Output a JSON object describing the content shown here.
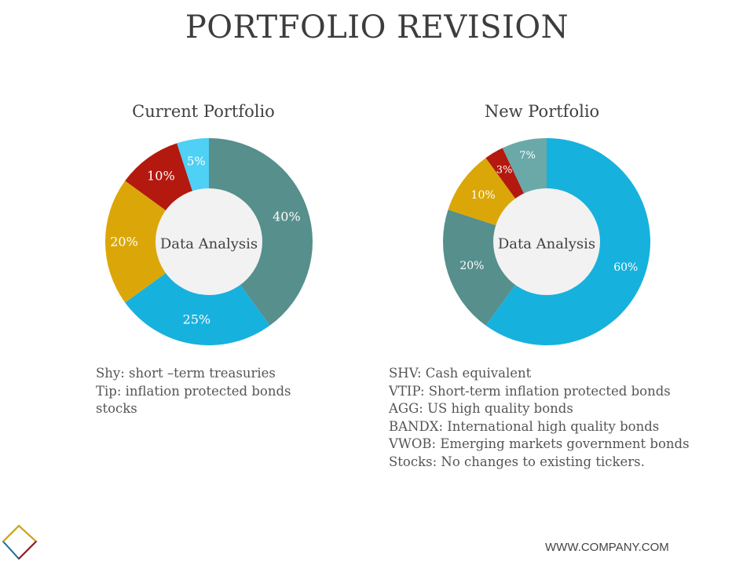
{
  "page": {
    "title": "PORTFOLIO REVISION",
    "footer_url": "WWW.COMPANY.COM"
  },
  "chart_data": [
    {
      "type": "pie",
      "donut": true,
      "title": "Current Portfolio",
      "center_label": "Data Analysis",
      "slices": [
        {
          "value": 40,
          "label": "40%",
          "color": "#568f8c"
        },
        {
          "value": 25,
          "label": "25%",
          "color": "#17b1de"
        },
        {
          "value": 20,
          "label": "20%",
          "color": "#dba708"
        },
        {
          "value": 10,
          "label": "10%",
          "color": "#b3190f"
        },
        {
          "value": 5,
          "label": "5%",
          "color": "#4fd0f5"
        }
      ]
    },
    {
      "type": "pie",
      "donut": true,
      "title": "New Portfolio",
      "center_label": "Data Analysis",
      "slices": [
        {
          "value": 60,
          "label": "60%",
          "color": "#17b1de"
        },
        {
          "value": 20,
          "label": "20%",
          "color": "#568f8c"
        },
        {
          "value": 10,
          "label": "10%",
          "color": "#dba708"
        },
        {
          "value": 3,
          "label": "3%",
          "color": "#b3190f"
        },
        {
          "value": 7,
          "label": "7%",
          "color": "#6aa9a8"
        }
      ]
    }
  ],
  "descriptions": {
    "current": [
      "Shy: short –term treasuries",
      "Tip: inflation protected bonds",
      "stocks"
    ],
    "new": [
      "SHV:  Cash equivalent",
      "VTIP:  Short-term inflation protected bonds",
      "AGG:  US high quality bonds",
      "BANDX:  International high quality bonds",
      "VWOB:  Emerging markets government bonds",
      "Stocks:  No changes to existing tickers."
    ]
  },
  "colors": {
    "center_fill": "#f2f2f2",
    "label_text": "#ffffff",
    "center_text": "#404040"
  }
}
